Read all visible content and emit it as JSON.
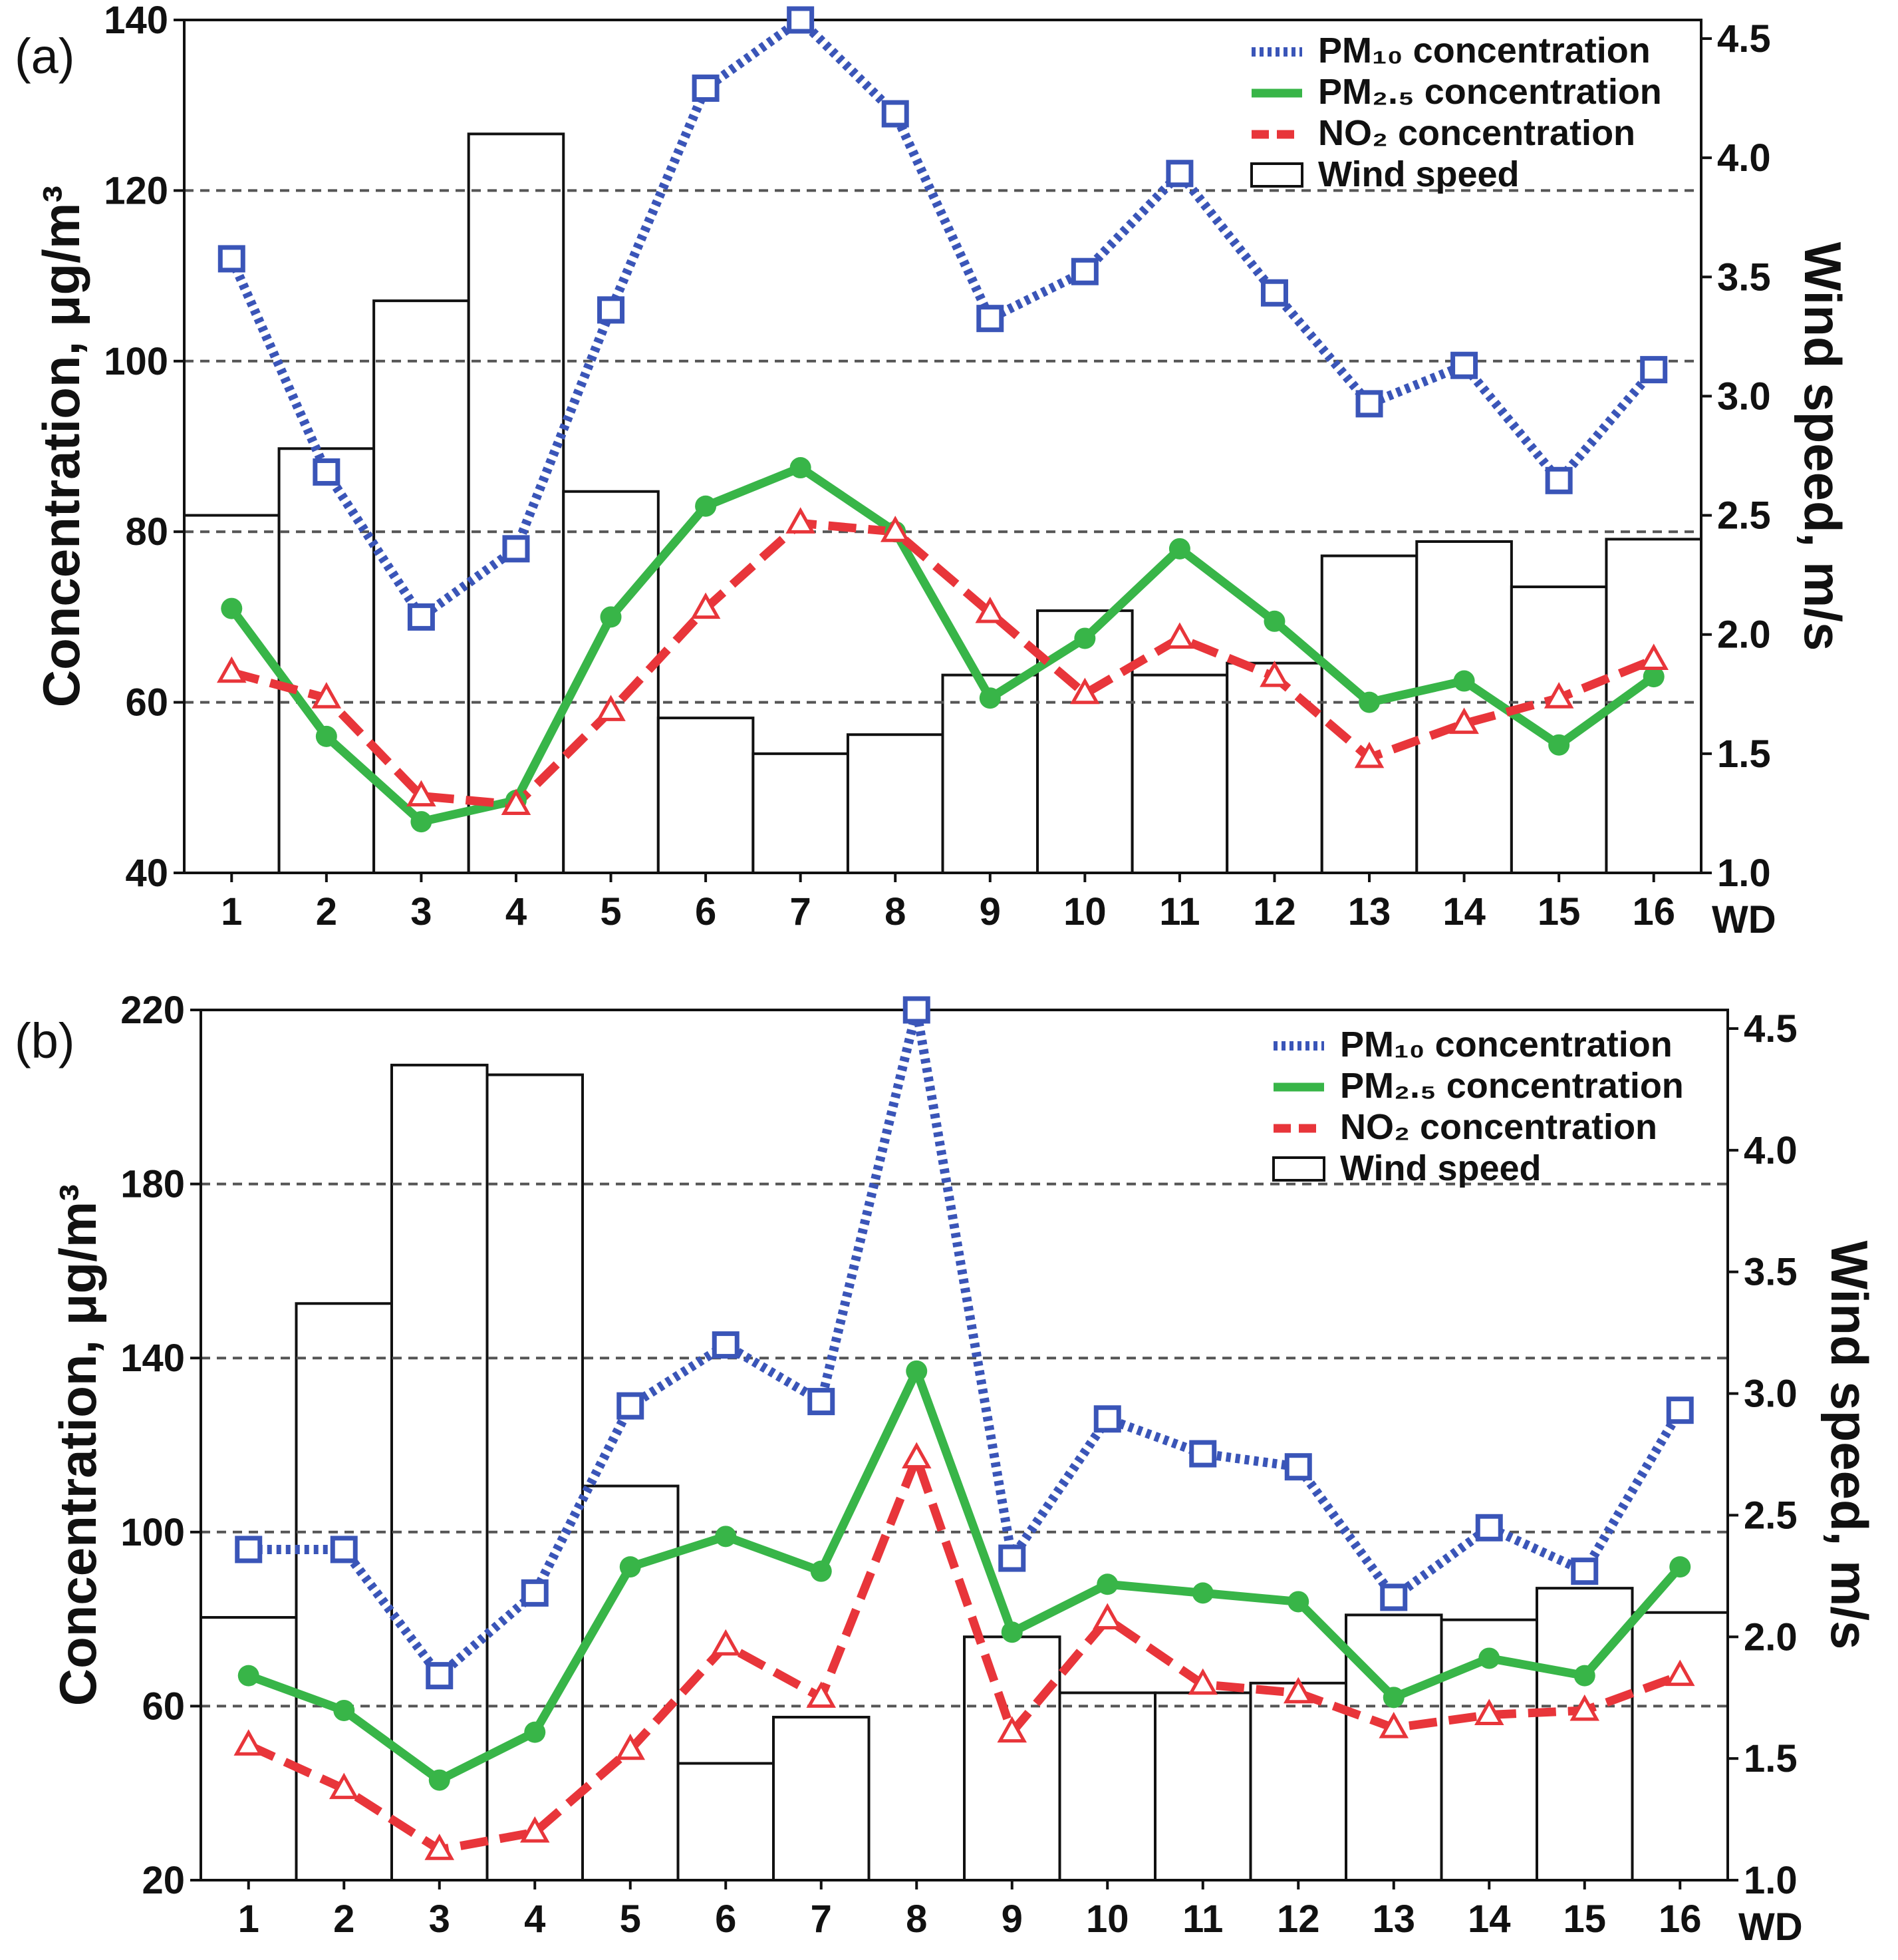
{
  "chart_data": [
    {
      "panel": "(a)",
      "type": "bar+line",
      "xlabel": "WD",
      "ylabel_left": "Concentration, μg/m³",
      "ylabel_right": "Wind speed, m/s",
      "categories": [
        "1",
        "2",
        "3",
        "4",
        "5",
        "6",
        "7",
        "8",
        "9",
        "10",
        "11",
        "12",
        "13",
        "14",
        "15",
        "16"
      ],
      "ylim_left": [
        40,
        140
      ],
      "yticks_left": [
        40,
        60,
        80,
        100,
        120,
        140
      ],
      "ylim_right": [
        1.0,
        4.5
      ],
      "yticks_right": [
        "1.0",
        "1.5",
        "2.0",
        "2.5",
        "3.0",
        "3.5",
        "4.0",
        "4.5"
      ],
      "grid_left_values": [
        60,
        80,
        100,
        120,
        140
      ],
      "legend_position": "top-right",
      "legend": [
        {
          "label": "PM₁₀ concentration",
          "style": "dotted",
          "color": "#3a55b8"
        },
        {
          "label": "PM₂.₅ concentration",
          "style": "solid",
          "color": "#38b548"
        },
        {
          "label": "NO₂ concentration",
          "style": "dashed",
          "color": "#e8353a"
        },
        {
          "label": "Wind speed",
          "style": "bar"
        }
      ],
      "series": [
        {
          "name": "PM₁₀ concentration",
          "axis": "left",
          "marker": "square",
          "color": "#3a55b8",
          "values": [
            112,
            87,
            70,
            78,
            106,
            132,
            140,
            129,
            105,
            110.5,
            122,
            108,
            95,
            99.5,
            86,
            99
          ]
        },
        {
          "name": "PM₂.₅ concentration",
          "axis": "left",
          "marker": "circle",
          "color": "#38b548",
          "values": [
            71,
            56,
            46,
            48.5,
            70,
            83,
            87.5,
            80,
            60.5,
            67.5,
            78,
            69.5,
            60,
            62.5,
            55,
            63
          ]
        },
        {
          "name": "NO₂ concentration",
          "axis": "left",
          "marker": "triangle",
          "color": "#e8353a",
          "values": [
            63.5,
            60.5,
            49,
            48,
            59,
            71,
            81,
            80,
            70.5,
            61,
            67.5,
            63,
            53.5,
            57.5,
            60.5,
            65
          ]
        },
        {
          "name": "Wind speed",
          "axis": "right",
          "type": "bar",
          "values": [
            2.5,
            2.78,
            3.4,
            4.1,
            2.6,
            1.65,
            1.5,
            1.58,
            1.83,
            2.1,
            1.83,
            1.88,
            2.33,
            2.39,
            2.2,
            2.4
          ]
        }
      ]
    },
    {
      "panel": "(b)",
      "type": "bar+line",
      "xlabel": "WD",
      "ylabel_left": "Concentration, μg/m³",
      "ylabel_right": "Wind speed, m/s",
      "categories": [
        "1",
        "2",
        "3",
        "4",
        "5",
        "6",
        "7",
        "8",
        "9",
        "10",
        "11",
        "12",
        "13",
        "14",
        "15",
        "16"
      ],
      "ylim_left": [
        20,
        220
      ],
      "yticks_left": [
        20,
        60,
        100,
        140,
        180,
        220
      ],
      "ylim_right": [
        1.0,
        4.5
      ],
      "yticks_right": [
        "1.0",
        "1.5",
        "2.0",
        "2.5",
        "3.0",
        "3.5",
        "4.0",
        "4.5"
      ],
      "grid_left_values": [
        60,
        100,
        140,
        180,
        220
      ],
      "legend_position": "top-right",
      "legend": [
        {
          "label": "PM₁₀ concentration",
          "style": "dotted",
          "color": "#3a55b8"
        },
        {
          "label": "PM₂.₅ concentration",
          "style": "solid",
          "color": "#38b548"
        },
        {
          "label": "NO₂ concentration",
          "style": "dashed",
          "color": "#e8353a"
        },
        {
          "label": "Wind speed",
          "style": "bar"
        }
      ],
      "series": [
        {
          "name": "PM₁₀ concentration",
          "axis": "left",
          "marker": "square",
          "color": "#3a55b8",
          "values": [
            96,
            96,
            67,
            86,
            129,
            143,
            130,
            220,
            94,
            126,
            118,
            115,
            85,
            101,
            91,
            128
          ]
        },
        {
          "name": "PM₂.₅ concentration",
          "axis": "left",
          "marker": "circle",
          "color": "#38b548",
          "values": [
            67,
            59,
            43,
            54,
            92,
            99,
            91,
            137,
            77,
            88,
            86,
            84,
            62,
            71,
            67,
            92
          ]
        },
        {
          "name": "NO₂ concentration",
          "axis": "left",
          "marker": "triangle",
          "color": "#e8353a",
          "values": [
            51,
            41,
            27,
            31,
            50,
            74,
            62,
            117,
            54,
            80,
            65,
            63,
            55,
            58,
            59,
            67
          ]
        },
        {
          "name": "Wind speed",
          "axis": "right",
          "type": "bar",
          "values": [
            2.08,
            3.37,
            4.35,
            4.31,
            2.62,
            1.48,
            1.67,
            1.0,
            2.0,
            1.77,
            1.77,
            1.81,
            2.09,
            2.07,
            2.2,
            2.1
          ]
        }
      ]
    }
  ]
}
